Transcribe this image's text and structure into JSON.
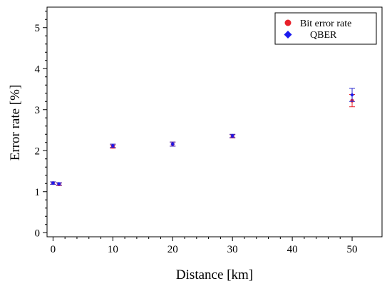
{
  "chart_data": {
    "type": "scatter",
    "xlabel": "Distance [km]",
    "ylabel": "Error rate [%]",
    "xlim": [
      -1,
      55
    ],
    "ylim": [
      -0.1,
      5.5
    ],
    "xticks": [
      "0",
      "10",
      "20",
      "30",
      "40",
      "50"
    ],
    "yticks": [
      "0",
      "1",
      "2",
      "3",
      "4",
      "5"
    ],
    "grid": false,
    "legend": "top-right",
    "series": [
      {
        "name": "Bit error rate",
        "marker": "circle",
        "color": "#e8202a",
        "errorbar_color": "#e8202a",
        "points": [
          {
            "x": 0,
            "y": 1.21,
            "err": 0.03
          },
          {
            "x": 1,
            "y": 1.18,
            "err": 0.03
          },
          {
            "x": 10,
            "y": 2.1,
            "err": 0.04
          },
          {
            "x": 20,
            "y": 2.16,
            "err": 0.05
          },
          {
            "x": 30,
            "y": 2.35,
            "err": 0.04
          },
          {
            "x": 50,
            "y": 3.22,
            "err": 0.15
          }
        ]
      },
      {
        "name": "QBER",
        "marker": "diamond",
        "color": "#1a1aee",
        "errorbar_color": "#2a2ad0",
        "points": [
          {
            "x": 0,
            "y": 1.21,
            "err": 0.03
          },
          {
            "x": 1,
            "y": 1.19,
            "err": 0.03
          },
          {
            "x": 10,
            "y": 2.12,
            "err": 0.04
          },
          {
            "x": 20,
            "y": 2.16,
            "err": 0.05
          },
          {
            "x": 30,
            "y": 2.36,
            "err": 0.04
          },
          {
            "x": 50,
            "y": 3.36,
            "err": 0.16
          }
        ]
      }
    ]
  }
}
